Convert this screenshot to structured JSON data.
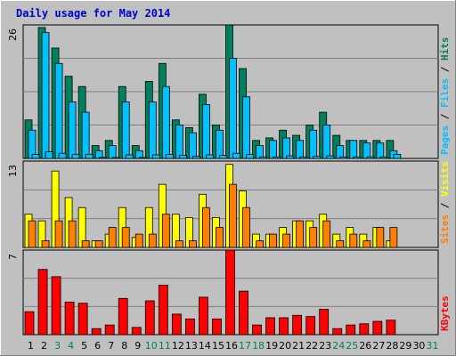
{
  "title": "Daily usage for May 2014",
  "colors": {
    "hits": "#00805c",
    "files": "#00c0ff",
    "pages": "#00c0ff",
    "visits": "#ffff00",
    "sites": "#ff8000",
    "kbytes": "#ff0000",
    "panel_bg": "#c0c0c0",
    "gridline": "#808080",
    "weekend_tick": "#00805c",
    "title": "#0000cc"
  },
  "chart_data": [
    {
      "type": "bar",
      "panel": "hits-files-pages",
      "title": "Daily usage for May 2014",
      "y_max_label": "26",
      "ylim": [
        0,
        26
      ],
      "legend_labels": {
        "pages": "Pages",
        "files": "Files",
        "hits": "Hits",
        "sep": " / "
      },
      "categories": [
        "1",
        "2",
        "3",
        "4",
        "5",
        "6",
        "7",
        "8",
        "9",
        "10",
        "11",
        "12",
        "13",
        "14",
        "15",
        "16",
        "17",
        "18",
        "19",
        "20",
        "21",
        "22",
        "23",
        "24",
        "25",
        "26",
        "27",
        "28",
        "29",
        "30",
        "31"
      ],
      "series": [
        {
          "name": "Hits",
          "values": [
            7.5,
            25.5,
            21.5,
            16,
            14,
            2.5,
            3.5,
            14,
            2.5,
            15,
            18.5,
            7.5,
            6,
            12.5,
            6.5,
            26.5,
            17.5,
            3.5,
            4,
            5.5,
            4.5,
            6.5,
            9,
            4.5,
            3.5,
            3.5,
            3.5,
            3.5,
            0,
            0,
            0
          ]
        },
        {
          "name": "Files",
          "values": [
            5.5,
            24.5,
            18.5,
            11,
            9,
            1.5,
            2.5,
            11,
            1.5,
            11,
            14,
            6.5,
            5,
            10.5,
            5.5,
            19.5,
            12,
            2.5,
            3.5,
            4,
            3.5,
            5.5,
            6.5,
            2.5,
            3.5,
            3,
            3,
            1.5,
            0,
            0,
            0
          ]
        },
        {
          "name": "Pages",
          "values": [
            0.8,
            1.3,
            1,
            0.8,
            0.8,
            0.2,
            0.2,
            0.7,
            0.2,
            0.7,
            0.8,
            0.6,
            0.4,
            0.7,
            0.6,
            1,
            0.8,
            0.3,
            0.3,
            0.5,
            0.3,
            0.4,
            0.5,
            0.3,
            0.3,
            0.3,
            0.3,
            0.8,
            0,
            0,
            0
          ]
        }
      ]
    },
    {
      "type": "bar",
      "panel": "visits-sites",
      "y_max_label": "13",
      "ylim": [
        0,
        13
      ],
      "legend_labels": {
        "sites": "Sites",
        "visits": "Visits",
        "sep": " / "
      },
      "categories": [
        "1",
        "2",
        "3",
        "4",
        "5",
        "6",
        "7",
        "8",
        "9",
        "10",
        "11",
        "12",
        "13",
        "14",
        "15",
        "16",
        "17",
        "18",
        "19",
        "20",
        "21",
        "22",
        "23",
        "24",
        "25",
        "26",
        "27",
        "28",
        "29",
        "30",
        "31"
      ],
      "series": [
        {
          "name": "Visits",
          "values": [
            5,
            4,
            11.5,
            7.5,
            6,
            1,
            2,
            6,
            1.5,
            6,
            9.5,
            5,
            4.5,
            8,
            4.5,
            12.5,
            8.5,
            2,
            2,
            3,
            4,
            4,
            5,
            2,
            3,
            2,
            3,
            1,
            0,
            0,
            0
          ]
        },
        {
          "name": "Sites",
          "values": [
            4,
            1,
            4,
            4,
            1,
            1,
            3,
            3,
            2,
            2,
            5,
            1,
            1,
            6,
            3,
            9.5,
            6,
            1,
            2,
            2,
            4,
            3,
            4,
            1,
            2,
            1,
            3,
            3,
            0,
            0,
            0
          ]
        }
      ]
    },
    {
      "type": "bar",
      "panel": "kbytes",
      "y_max_label": "7",
      "ylim": [
        0,
        7
      ],
      "legend_labels": {
        "kbytes": "KBytes"
      },
      "categories": [
        "1",
        "2",
        "3",
        "4",
        "5",
        "6",
        "7",
        "8",
        "9",
        "10",
        "11",
        "12",
        "13",
        "14",
        "15",
        "16",
        "17",
        "18",
        "19",
        "20",
        "21",
        "22",
        "23",
        "24",
        "25",
        "26",
        "27",
        "28",
        "29",
        "30",
        "31"
      ],
      "series": [
        {
          "name": "KBytes",
          "values": [
            1.9,
            5.4,
            4.8,
            2.7,
            2.6,
            0.5,
            0.8,
            3,
            0.6,
            2.8,
            4.1,
            1.7,
            1.3,
            3.1,
            1.3,
            7.2,
            3.6,
            0.8,
            1.4,
            1.4,
            1.6,
            1.5,
            2.1,
            0.5,
            0.8,
            0.9,
            1.1,
            1.2,
            0,
            0,
            0
          ]
        }
      ]
    }
  ],
  "x_ticks": {
    "labels": [
      "1",
      "2",
      "3",
      "4",
      "5",
      "6",
      "7",
      "8",
      "9",
      "10",
      "11",
      "12",
      "13",
      "14",
      "15",
      "16",
      "17",
      "18",
      "19",
      "20",
      "21",
      "22",
      "23",
      "24",
      "25",
      "26",
      "27",
      "28",
      "29",
      "30",
      "31"
    ],
    "weekend": [
      false,
      false,
      true,
      true,
      false,
      false,
      false,
      false,
      false,
      true,
      true,
      false,
      false,
      false,
      false,
      false,
      true,
      true,
      false,
      false,
      false,
      false,
      false,
      true,
      true,
      false,
      false,
      false,
      false,
      false,
      true
    ]
  }
}
